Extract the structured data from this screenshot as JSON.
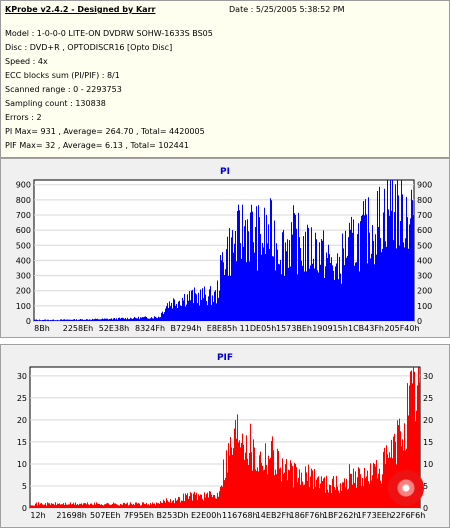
{
  "header": {
    "app_title": "KProbe v2.4.2 - Designed by Karr",
    "date": "Date : 5/25/2005 5:38:52 PM",
    "lines": [
      "Model : 1-0-0-0 LITE-ON DVDRW SOHW-1633S BS05",
      "Disc : DVD+R , OPTODISCR16 [Opto Disc]",
      "Speed : 4x",
      "ECC blocks sum (PI/PIF) : 8/1",
      "Scanned range : 0 - 2293753",
      "Sampling count : 130838",
      "Errors : 2",
      "PI Max= 931 , Average= 264.70 , Total= 4420005",
      "PIF Max= 32 , Average= 6.13 , Total= 102441"
    ]
  },
  "colors": {
    "pi": "#0000ff",
    "pif": "#ff0000"
  },
  "chart_data": [
    {
      "type": "area",
      "title": "PI",
      "xlabel": "",
      "ylabel": "",
      "x_tick_labels": [
        "8Bh",
        "2258Eh",
        "52E38h",
        "8324Fh",
        "B7294h",
        "E8E85h",
        "11DE05h",
        "1573BEh",
        "190915h",
        "1CB43Fh",
        "205F40h"
      ],
      "y_ticks": [
        0,
        100,
        200,
        300,
        400,
        500,
        600,
        700,
        800,
        900
      ],
      "ylim": [
        0,
        931
      ],
      "grid": true,
      "series": [
        {
          "name": "PI",
          "x_fraction": [
            0,
            0.05,
            0.1,
            0.15,
            0.2,
            0.25,
            0.3,
            0.33,
            0.35,
            0.38,
            0.4,
            0.43,
            0.45,
            0.48,
            0.5,
            0.52,
            0.54,
            0.56,
            0.58,
            0.6,
            0.62,
            0.64,
            0.66,
            0.68,
            0.7,
            0.72,
            0.74,
            0.76,
            0.78,
            0.8,
            0.82,
            0.84,
            0.86,
            0.88,
            0.9,
            0.92,
            0.94,
            0.96,
            0.98,
            1.0
          ],
          "values": [
            8,
            8,
            10,
            12,
            15,
            20,
            25,
            30,
            120,
            150,
            170,
            175,
            180,
            175,
            480,
            520,
            600,
            680,
            620,
            580,
            640,
            560,
            520,
            600,
            540,
            500,
            530,
            480,
            420,
            350,
            520,
            540,
            600,
            640,
            680,
            760,
            880,
            800,
            780,
            790
          ]
        }
      ]
    },
    {
      "type": "area",
      "title": "PIF",
      "xlabel": "",
      "ylabel": "",
      "x_tick_labels": [
        "12h",
        "21698h",
        "507EEh",
        "7F95Eh",
        "B253Dh",
        "E2E00h",
        "116768h",
        "14EB2Fh",
        "186F76h",
        "1BF262h",
        "1F73EEh",
        "22F6F6h"
      ],
      "y_ticks": [
        0,
        5,
        10,
        15,
        20,
        25,
        30
      ],
      "ylim": [
        0,
        32
      ],
      "grid": true,
      "series": [
        {
          "name": "PIF",
          "x_fraction": [
            0,
            0.05,
            0.1,
            0.15,
            0.2,
            0.25,
            0.3,
            0.33,
            0.35,
            0.38,
            0.4,
            0.43,
            0.45,
            0.48,
            0.5,
            0.52,
            0.54,
            0.56,
            0.58,
            0.6,
            0.62,
            0.64,
            0.66,
            0.68,
            0.7,
            0.72,
            0.74,
            0.76,
            0.78,
            0.8,
            0.82,
            0.84,
            0.86,
            0.88,
            0.9,
            0.92,
            0.94,
            0.96,
            0.98,
            1.0
          ],
          "values": [
            1,
            1,
            1,
            1,
            1,
            1,
            1,
            1,
            2,
            2,
            3,
            3,
            3,
            3,
            11,
            16,
            21,
            17,
            12,
            13,
            14,
            11,
            9,
            8,
            7,
            8,
            7,
            6,
            6,
            5,
            8,
            8,
            7,
            9,
            9,
            12,
            15,
            20,
            26,
            30
          ]
        }
      ]
    }
  ]
}
